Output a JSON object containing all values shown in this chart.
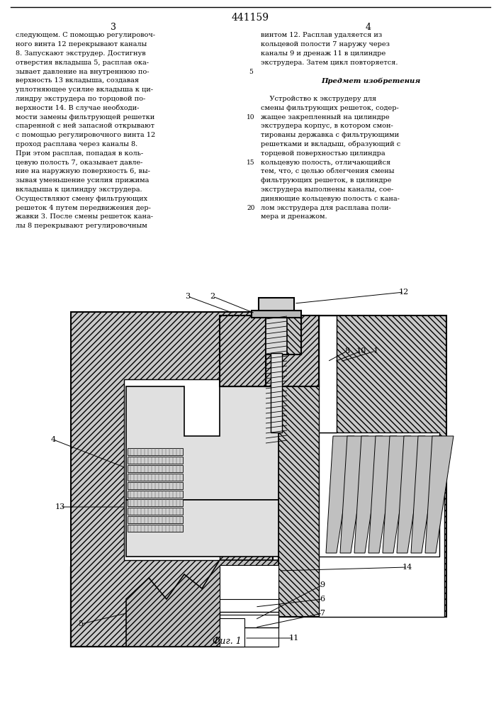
{
  "patent_number": "441159",
  "col_left_number": "3",
  "col_right_number": "4",
  "col_left_text": [
    "следующем. С помощью регулировоч-",
    "ного винта 12 перекрывают каналы",
    "8. Запускают экструдер. Достигнув",
    "отверстия вкладыша 5, расплав ока-",
    "зывает давление на внутреннюю по-",
    "верхность 13 вкладыша, создавая",
    "уплотняющее усилие вкладыша к ци-",
    "линдру экструдера по торцовой по-",
    "верхности 14. В случае необходи-",
    "мости замены фильтрующей решетки",
    "спаренной с ней запасной открывают",
    "с помощью регулировочного винта 12",
    "проход расплава через каналы 8.",
    "При этом расплав, попадая в коль-",
    "цевую полость 7, оказывает давле-",
    "ние на наружную поверхность 6, вы-",
    "зывая уменьшение усилия прижима",
    "вкладыша к цилиндру экструдера.",
    "Осуществляют смену фильтрующих",
    "решеток 4 путем передвижения дер-",
    "жавки 3. После смены решеток кана-",
    "лы 8 перекрывают регулировочным"
  ],
  "col_right_text": [
    "винтом 12. Расплав удаляется из",
    "кольцевой полости 7 наружу через",
    "каналы 9 и дренаж 11 в цилиндре",
    "экструдера. Затем цикл повторяется.",
    "",
    "Предмет изобретения",
    "",
    "    Устройство к экструдеру для",
    "смены фильтрующих решеток, содер-",
    "жащее закрепленный на цилиндре",
    "экструдера корпус, в котором смон-",
    "тированы державка с фильтрующими",
    "решетками и вкладыш, образующий с",
    "торцевой поверхностью цилиндра",
    "кольцевую полость, отличающийся",
    "тем, что, с целью облегчения смены",
    "фильтрующих решеток, в цилиндре",
    "экструдера выполнены каналы, сое-",
    "диняющие кольцевую полость с кана-",
    "лом экструдера для расплава поли-",
    "мера и дренажом."
  ],
  "line_numbers": {
    "4": "5",
    "9": "10",
    "14": "15",
    "19": "20"
  },
  "fig_caption": "Фиг. 1",
  "bg_color": "#ffffff",
  "text_color": "#000000"
}
